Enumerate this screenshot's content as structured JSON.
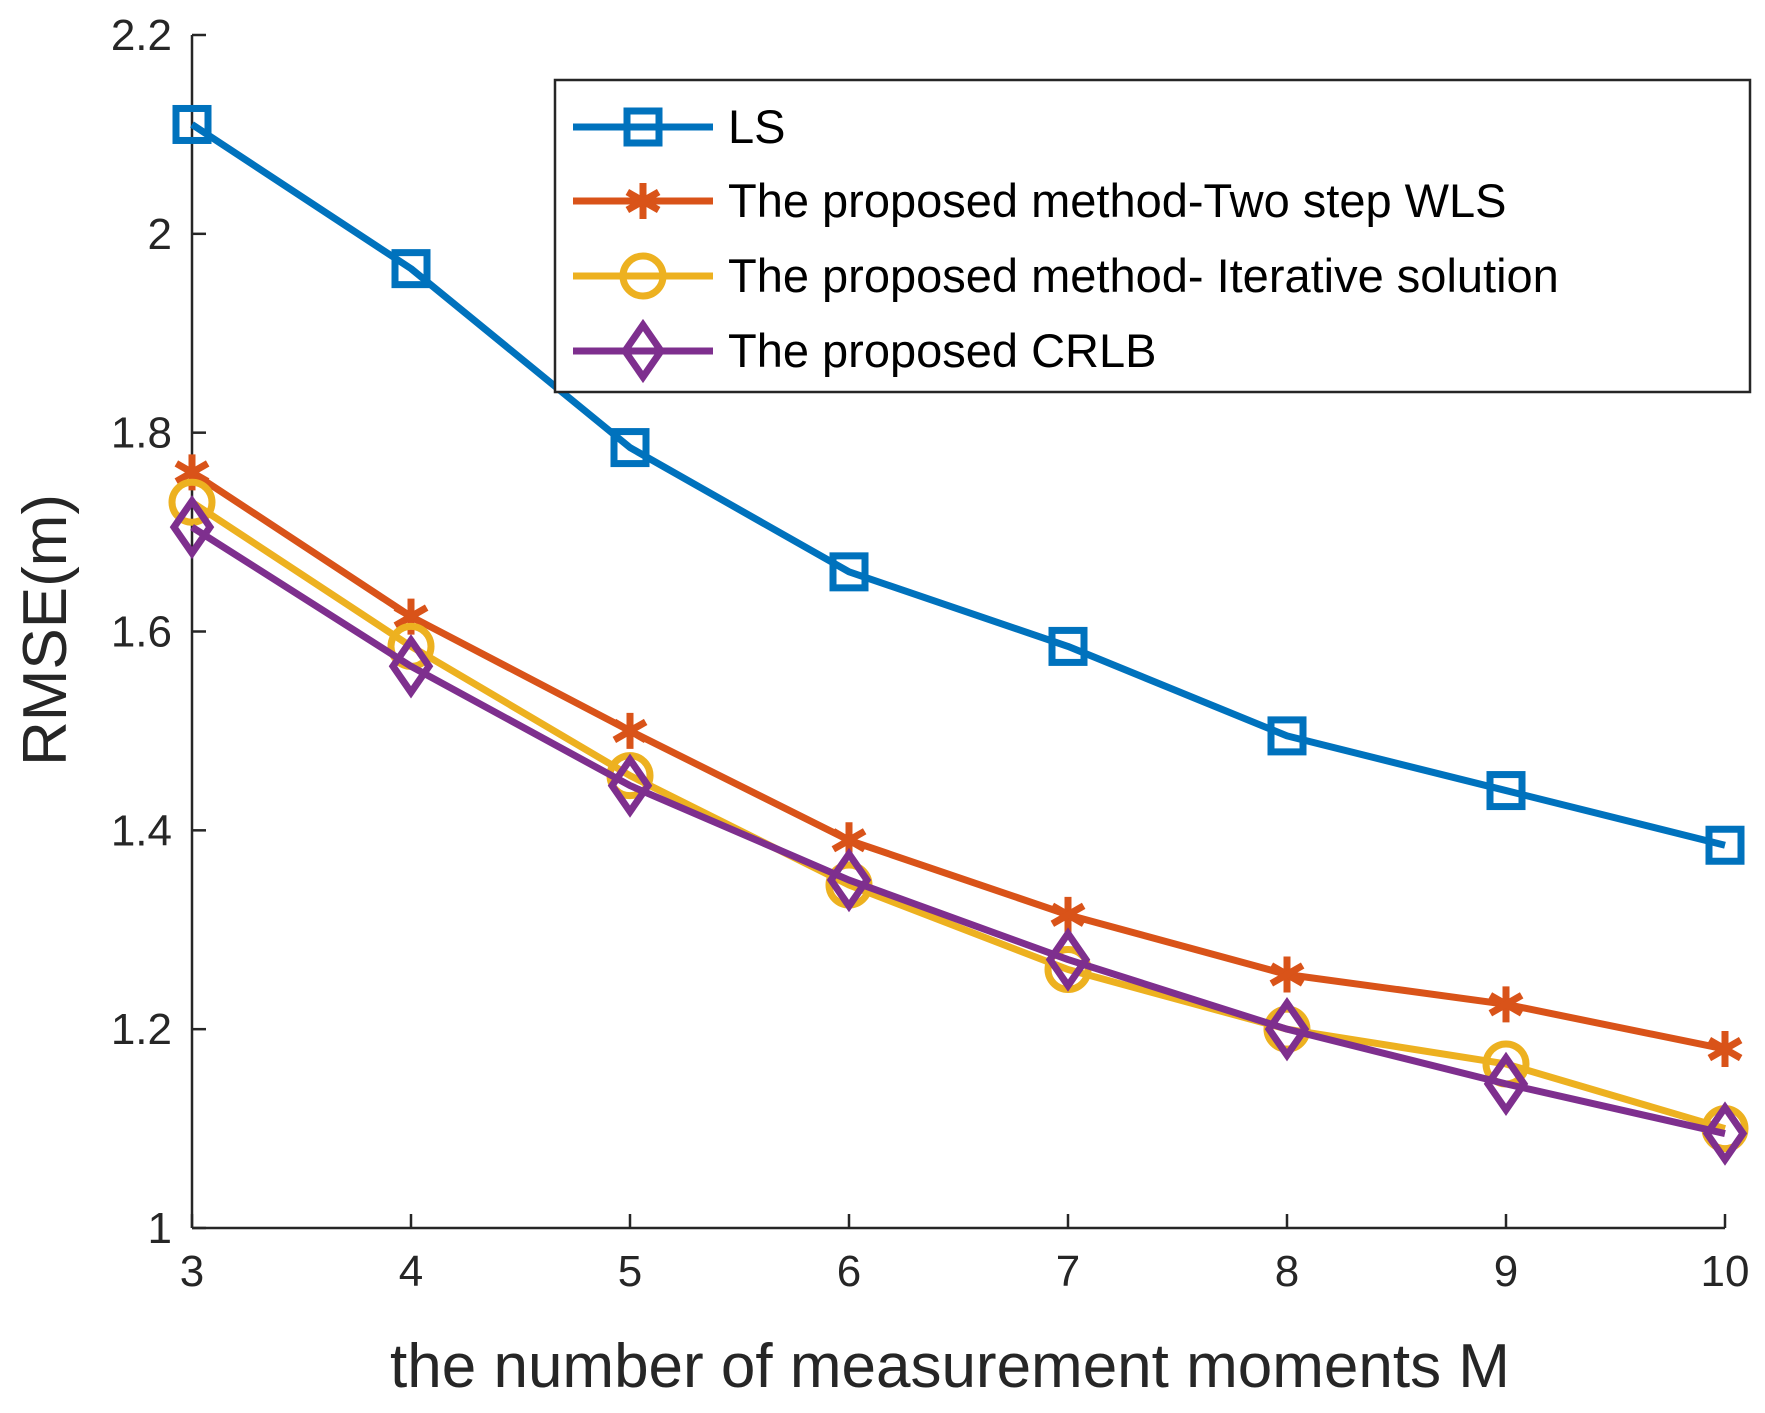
{
  "chart_data": {
    "type": "line",
    "title": "",
    "xlabel": "the number of  measurement moments M",
    "ylabel": "RMSE(m)",
    "x": [
      3,
      4,
      5,
      6,
      7,
      8,
      9,
      10
    ],
    "xticks": [
      "3",
      "4",
      "5",
      "6",
      "7",
      "8",
      "9",
      "10"
    ],
    "yticks": [
      "1",
      "1.2",
      "1.4",
      "1.6",
      "1.8",
      "2",
      "2.2"
    ],
    "ytick_values": [
      1,
      1.2,
      1.4,
      1.6,
      1.8,
      2,
      2.2
    ],
    "xlim": [
      3,
      10
    ],
    "ylim": [
      1,
      2.2
    ],
    "grid": false,
    "legend_position": "top-right",
    "series": [
      {
        "name": "LS",
        "color": "#0072BD",
        "marker": "square",
        "values": [
          2.11,
          1.965,
          1.785,
          1.66,
          1.585,
          1.495,
          1.44,
          1.385
        ]
      },
      {
        "name": "The proposed method-Two step WLS",
        "color": "#D95319",
        "marker": "asterisk",
        "values": [
          1.76,
          1.615,
          1.5,
          1.39,
          1.315,
          1.255,
          1.225,
          1.18
        ]
      },
      {
        "name": "The proposed method- Iterative solution",
        "color": "#EDB120",
        "marker": "circle",
        "values": [
          1.73,
          1.585,
          1.455,
          1.345,
          1.26,
          1.2,
          1.165,
          1.1
        ]
      },
      {
        "name": "The proposed CRLB",
        "color": "#7E2F8E",
        "marker": "diamond",
        "values": [
          1.705,
          1.565,
          1.445,
          1.35,
          1.27,
          1.2,
          1.145,
          1.095
        ]
      }
    ]
  }
}
